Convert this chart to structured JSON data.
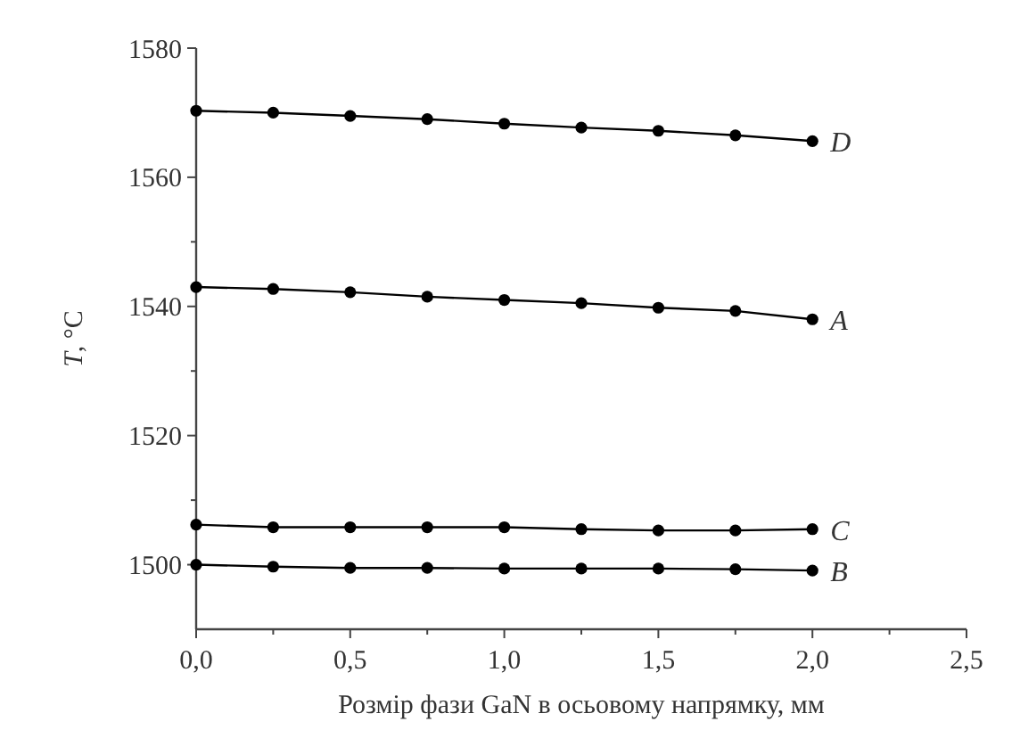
{
  "chart_data": {
    "type": "line",
    "xlabel": "Розмір фази GaN в осьовому напрямку, мм",
    "ylabel": "T, °C",
    "x": [
      0,
      0.25,
      0.5,
      0.75,
      1.0,
      1.25,
      1.5,
      1.75,
      2.0
    ],
    "xlim": [
      0,
      2.5
    ],
    "xticks": [
      {
        "value": 0,
        "label": "0,0"
      },
      {
        "value": 0.5,
        "label": "0,5"
      },
      {
        "value": 1,
        "label": "1,0"
      },
      {
        "value": 1.5,
        "label": "1,5"
      },
      {
        "value": 2,
        "label": "2,0"
      },
      {
        "value": 2.5,
        "label": "2,5"
      }
    ],
    "ylim": [
      1490,
      1580
    ],
    "yticks": [
      1500,
      1520,
      1540,
      1560,
      1580
    ],
    "marker": "circle",
    "line_style": "solid",
    "series": [
      {
        "name": "D",
        "color": "#000000",
        "values": [
          1570.3,
          1570,
          1569.5,
          1569,
          1568.3,
          1567.7,
          1567.2,
          1566.5,
          1565.6
        ]
      },
      {
        "name": "A",
        "color": "#000000",
        "values": [
          1543,
          1542.7,
          1542.2,
          1541.5,
          1541,
          1540.5,
          1539.8,
          1539.3,
          1538
        ]
      },
      {
        "name": "C",
        "color": "#000000",
        "values": [
          1506.2,
          1505.8,
          1505.8,
          1505.8,
          1505.8,
          1505.5,
          1505.3,
          1505.3,
          1505.5
        ]
      },
      {
        "name": "B",
        "color": "#000000",
        "values": [
          1500,
          1499.7,
          1499.5,
          1499.5,
          1499.4,
          1499.4,
          1499.4,
          1499.3,
          1499.1
        ]
      }
    ]
  }
}
